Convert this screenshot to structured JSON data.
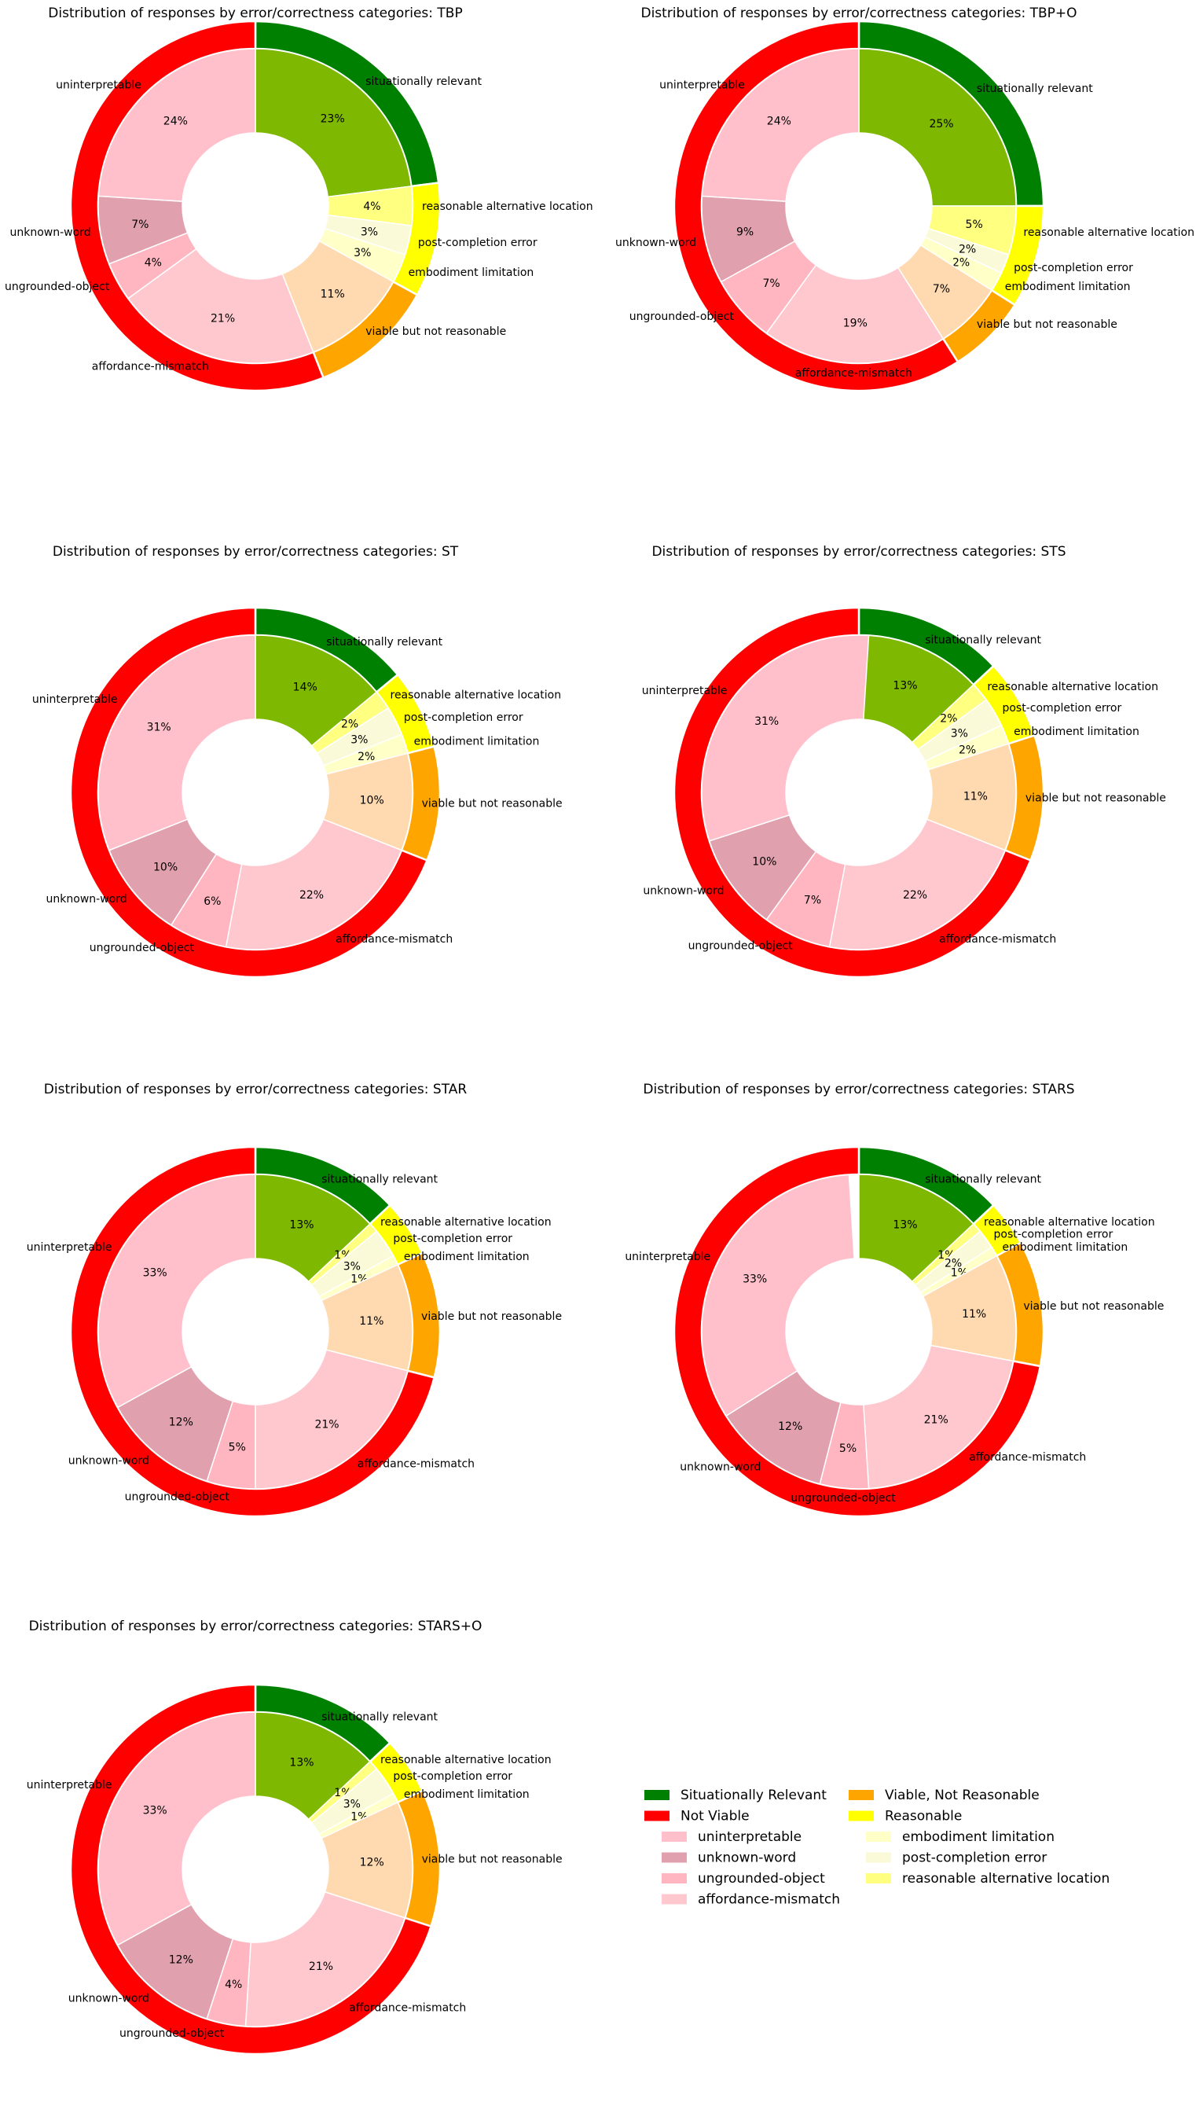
{
  "legend": {
    "items": [
      {
        "label": "Situationally Relevant",
        "color": "#008000"
      },
      {
        "label": "Not Viable",
        "color": "#FF0000"
      },
      {
        "label": "uninterpretable",
        "color": "#FFC0CB"
      },
      {
        "label": "unknown-word",
        "color": "#E0A0AE"
      },
      {
        "label": "ungrounded-object",
        "color": "#FFB6C1"
      },
      {
        "label": "affordance-mismatch",
        "color": "#FFC8CF"
      },
      {
        "label": "Viable, Not Reasonable",
        "color": "#FFA500"
      },
      {
        "label": "Reasonable",
        "color": "#FFFF00"
      },
      {
        "label": "embodiment limitation",
        "color": "#FFFFC8"
      },
      {
        "label": "post-completion error",
        "color": "#FAFAD8"
      },
      {
        "label": "reasonable alternative location",
        "color": "#FFFF80"
      }
    ]
  },
  "chart_data": [
    {
      "type": "pie",
      "title": "Distribution of responses by error/correctness categories: TBP",
      "outer": [
        {
          "label": "situationally relevant",
          "value": 23,
          "color": "#008000"
        },
        {
          "label": "reasonable",
          "value": 10,
          "color": "#FFFF00"
        },
        {
          "label": "viable but not reasonable",
          "value": 11,
          "color": "#FFA500"
        },
        {
          "label": "not viable",
          "value": 56,
          "color": "#FF0000"
        }
      ],
      "inner": [
        {
          "label": "situationally relevant",
          "value": 23,
          "pct": "23%",
          "color": "#7FB800"
        },
        {
          "label": "reasonable alternative location",
          "value": 4,
          "pct": "4%",
          "color": "#FFFF80"
        },
        {
          "label": "post-completion error",
          "value": 3,
          "pct": "3%",
          "color": "#FAFAD8"
        },
        {
          "label": "embodiment limitation",
          "value": 3,
          "pct": "3%",
          "color": "#FFFFC8"
        },
        {
          "label": "viable but not reasonable",
          "value": 11,
          "pct": "11%",
          "color": "#FFDAB0"
        },
        {
          "label": "affordance-mismatch",
          "value": 21,
          "pct": "21%",
          "color": "#FFC8CF"
        },
        {
          "label": "ungrounded-object",
          "value": 4,
          "pct": "4%",
          "color": "#FFB6C1"
        },
        {
          "label": "unknown-word",
          "value": 7,
          "pct": "7%",
          "color": "#E0A0AE"
        },
        {
          "label": "uninterpretable",
          "value": 24,
          "pct": "24%",
          "color": "#FFC0CB"
        }
      ]
    },
    {
      "type": "pie",
      "title": "Distribution of responses by error/correctness categories: TBP+O",
      "outer": [
        {
          "label": "situationally relevant",
          "value": 25,
          "color": "#008000"
        },
        {
          "label": "reasonable",
          "value": 9,
          "color": "#FFFF00"
        },
        {
          "label": "viable but not reasonable",
          "value": 7,
          "color": "#FFA500"
        },
        {
          "label": "not viable",
          "value": 59,
          "color": "#FF0000"
        }
      ],
      "inner": [
        {
          "label": "situationally relevant",
          "value": 25,
          "pct": "25%",
          "color": "#7FB800"
        },
        {
          "label": "reasonable alternative location",
          "value": 5,
          "pct": "5%",
          "color": "#FFFF80"
        },
        {
          "label": "post-completion error",
          "value": 2,
          "pct": "2%",
          "color": "#FAFAD8"
        },
        {
          "label": "embodiment limitation",
          "value": 2,
          "pct": "2%",
          "color": "#FFFFC8"
        },
        {
          "label": "viable but not reasonable",
          "value": 7,
          "pct": "7%",
          "color": "#FFDAB0"
        },
        {
          "label": "affordance-mismatch",
          "value": 19,
          "pct": "19%",
          "color": "#FFC8CF"
        },
        {
          "label": "ungrounded-object",
          "value": 7,
          "pct": "7%",
          "color": "#FFB6C1"
        },
        {
          "label": "unknown-word",
          "value": 9,
          "pct": "9%",
          "color": "#E0A0AE"
        },
        {
          "label": "uninterpretable",
          "value": 24,
          "pct": "24%",
          "color": "#FFC0CB"
        }
      ]
    },
    {
      "type": "pie",
      "title": "Distribution of responses by error/correctness categories: ST",
      "outer": [
        {
          "label": "situationally relevant",
          "value": 14,
          "color": "#008000"
        },
        {
          "label": "reasonable",
          "value": 7,
          "color": "#FFFF00"
        },
        {
          "label": "viable but not reasonable",
          "value": 10,
          "color": "#FFA500"
        },
        {
          "label": "not viable",
          "value": 69,
          "color": "#FF0000"
        }
      ],
      "inner": [
        {
          "label": "situationally relevant",
          "value": 14,
          "pct": "14%",
          "color": "#7FB800"
        },
        {
          "label": "reasonable alternative location",
          "value": 2,
          "pct": "2%",
          "color": "#FFFF80"
        },
        {
          "label": "post-completion error",
          "value": 3,
          "pct": "3%",
          "color": "#FAFAD8"
        },
        {
          "label": "embodiment limitation",
          "value": 2,
          "pct": "2%",
          "color": "#FFFFC8"
        },
        {
          "label": "viable but not reasonable",
          "value": 10,
          "pct": "10%",
          "color": "#FFDAB0"
        },
        {
          "label": "affordance-mismatch",
          "value": 22,
          "pct": "22%",
          "color": "#FFC8CF"
        },
        {
          "label": "ungrounded-object",
          "value": 6,
          "pct": "6%",
          "color": "#FFB6C1"
        },
        {
          "label": "unknown-word",
          "value": 10,
          "pct": "10%",
          "color": "#E0A0AE"
        },
        {
          "label": "uninterpretable",
          "value": 31,
          "pct": "31%",
          "color": "#FFC0CB"
        }
      ]
    },
    {
      "type": "pie",
      "title": "Distribution of responses by error/correctness categories: STS",
      "outer": [
        {
          "label": "situationally relevant",
          "value": 13,
          "color": "#008000"
        },
        {
          "label": "reasonable",
          "value": 7,
          "color": "#FFFF00"
        },
        {
          "label": "viable but not reasonable",
          "value": 11,
          "color": "#FFA500"
        },
        {
          "label": "not viable",
          "value": 69,
          "color": "#FF0000"
        }
      ],
      "inner": [
        {
          "label": "situationally relevant",
          "value": 13,
          "pct": "13%",
          "color": "#7FB800"
        },
        {
          "label": "reasonable alternative location",
          "value": 2,
          "pct": "2%",
          "color": "#FFFF80"
        },
        {
          "label": "post-completion error",
          "value": 3,
          "pct": "3%",
          "color": "#FAFAD8"
        },
        {
          "label": "embodiment limitation",
          "value": 2,
          "pct": "2%",
          "color": "#FFFFC8"
        },
        {
          "label": "viable but not reasonable",
          "value": 11,
          "pct": "11%",
          "color": "#FFDAB0"
        },
        {
          "label": "affordance-mismatch",
          "value": 22,
          "pct": "22%",
          "color": "#FFC8CF"
        },
        {
          "label": "ungrounded-object",
          "value": 7,
          "pct": "7%",
          "color": "#FFB6C1"
        },
        {
          "label": "unknown-word",
          "value": 10,
          "pct": "10%",
          "color": "#E0A0AE"
        },
        {
          "label": "uninterpretable",
          "value": 31,
          "pct": "31%",
          "color": "#FFC0CB"
        }
      ]
    },
    {
      "type": "pie",
      "title": "Distribution of responses by error/correctness categories: STAR",
      "outer": [
        {
          "label": "situationally relevant",
          "value": 13,
          "color": "#008000"
        },
        {
          "label": "reasonable",
          "value": 5,
          "color": "#FFFF00"
        },
        {
          "label": "viable but not reasonable",
          "value": 11,
          "color": "#FFA500"
        },
        {
          "label": "not viable",
          "value": 71,
          "color": "#FF0000"
        }
      ],
      "inner": [
        {
          "label": "situationally relevant",
          "value": 13,
          "pct": "13%",
          "color": "#7FB800"
        },
        {
          "label": "reasonable alternative location",
          "value": 1,
          "pct": "1%",
          "color": "#FFFF80"
        },
        {
          "label": "post-completion error",
          "value": 3,
          "pct": "3%",
          "color": "#FAFAD8"
        },
        {
          "label": "embodiment limitation",
          "value": 1,
          "pct": "1%",
          "color": "#FFFFC8"
        },
        {
          "label": "viable but not reasonable",
          "value": 11,
          "pct": "11%",
          "color": "#FFDAB0"
        },
        {
          "label": "affordance-mismatch",
          "value": 21,
          "pct": "21%",
          "color": "#FFC8CF"
        },
        {
          "label": "ungrounded-object",
          "value": 5,
          "pct": "5%",
          "color": "#FFB6C1"
        },
        {
          "label": "unknown-word",
          "value": 12,
          "pct": "12%",
          "color": "#E0A0AE"
        },
        {
          "label": "uninterpretable",
          "value": 33,
          "pct": "33%",
          "color": "#FFC0CB"
        }
      ]
    },
    {
      "type": "pie",
      "title": "Distribution of responses by error/correctness categories: STARS",
      "outer": [
        {
          "label": "situationally relevant",
          "value": 13,
          "color": "#008000"
        },
        {
          "label": "reasonable",
          "value": 4,
          "color": "#FFFF00"
        },
        {
          "label": "viable but not reasonable",
          "value": 11,
          "color": "#FFA500"
        },
        {
          "label": "not viable",
          "value": 72,
          "color": "#FF0000"
        }
      ],
      "inner": [
        {
          "label": "situationally relevant",
          "value": 13,
          "pct": "13%",
          "color": "#7FB800"
        },
        {
          "label": "reasonable alternative location",
          "value": 1,
          "pct": "1%",
          "color": "#FFFF80"
        },
        {
          "label": "post-completion error",
          "value": 2,
          "pct": "2%",
          "color": "#FAFAD8"
        },
        {
          "label": "embodiment limitation",
          "value": 1,
          "pct": "1%",
          "color": "#FFFFC8"
        },
        {
          "label": "viable but not reasonable",
          "value": 11,
          "pct": "11%",
          "color": "#FFDAB0"
        },
        {
          "label": "affordance-mismatch",
          "value": 21,
          "pct": "21%",
          "color": "#FFC8CF"
        },
        {
          "label": "ungrounded-object",
          "value": 5,
          "pct": "5%",
          "color": "#FFB6C1"
        },
        {
          "label": "unknown-word",
          "value": 12,
          "pct": "12%",
          "color": "#E0A0AE"
        },
        {
          "label": "uninterpretable",
          "value": 33,
          "pct": "33%",
          "color": "#FFC0CB"
        }
      ]
    },
    {
      "type": "pie",
      "title": "Distribution of responses by error/correctness categories: STARS+O",
      "outer": [
        {
          "label": "situationally relevant",
          "value": 13,
          "color": "#008000"
        },
        {
          "label": "reasonable",
          "value": 5,
          "color": "#FFFF00"
        },
        {
          "label": "viable but not reasonable",
          "value": 12,
          "color": "#FFA500"
        },
        {
          "label": "not viable",
          "value": 70,
          "color": "#FF0000"
        }
      ],
      "inner": [
        {
          "label": "situationally relevant",
          "value": 13,
          "pct": "13%",
          "color": "#7FB800"
        },
        {
          "label": "reasonable alternative location",
          "value": 1,
          "pct": "1%",
          "color": "#FFFF80"
        },
        {
          "label": "post-completion error",
          "value": 3,
          "pct": "3%",
          "color": "#FAFAD8"
        },
        {
          "label": "embodiment limitation",
          "value": 1,
          "pct": "1%",
          "color": "#FFFFC8"
        },
        {
          "label": "viable but not reasonable",
          "value": 12,
          "pct": "12%",
          "color": "#FFDAB0"
        },
        {
          "label": "affordance-mismatch",
          "value": 21,
          "pct": "21%",
          "color": "#FFC8CF"
        },
        {
          "label": "ungrounded-object",
          "value": 4,
          "pct": "4%",
          "color": "#FFB6C1"
        },
        {
          "label": "unknown-word",
          "value": 12,
          "pct": "12%",
          "color": "#E0A0AE"
        },
        {
          "label": "uninterpretable",
          "value": 33,
          "pct": "33%",
          "color": "#FFC0CB"
        }
      ]
    }
  ]
}
